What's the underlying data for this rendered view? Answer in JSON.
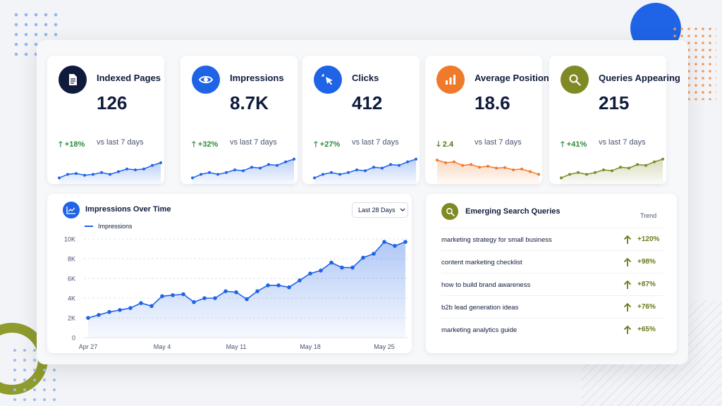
{
  "metrics": [
    {
      "title": "Indexed Pages",
      "value": "126",
      "change": "+18%",
      "direction": "up",
      "vs": "vs last 7 days",
      "icon": "document-icon",
      "color": "#0f1b3d",
      "spark_color": "#1f63e6",
      "spark": [
        3,
        5,
        5.5,
        4.5,
        5,
        6,
        5,
        6.5,
        8,
        7.5,
        8,
        10,
        11.5
      ]
    },
    {
      "title": "Impressions",
      "value": "8.7K",
      "change": "+32%",
      "direction": "up",
      "vs": "vs last 7 days",
      "icon": "eye-icon",
      "color": "#1f63e6",
      "spark_color": "#1f63e6",
      "spark": [
        3,
        5,
        6,
        5,
        6,
        7.5,
        7,
        9,
        8.5,
        10.5,
        10,
        12,
        13.5
      ]
    },
    {
      "title": "Clicks",
      "value": "412",
      "change": "+27%",
      "direction": "up",
      "vs": "vs last 7 days",
      "icon": "cursor-click-icon",
      "color": "#1f63e6",
      "spark_color": "#1f63e6",
      "spark": [
        3,
        5,
        6,
        5,
        6,
        7.5,
        7,
        9,
        8.5,
        10.5,
        10,
        12,
        13.5
      ]
    },
    {
      "title": "Average Position",
      "value": "18.6",
      "change": "2.4",
      "direction": "down",
      "vs": "vs last 7 days",
      "icon": "bar-chart-icon",
      "color": "#f07a2c",
      "spark_color": "#f07a2c",
      "spark": [
        13,
        11.5,
        12,
        10,
        10.5,
        9,
        9.5,
        8.5,
        8.8,
        7.5,
        8,
        6.5,
        5
      ]
    },
    {
      "title": "Queries Appearing",
      "value": "215",
      "change": "+41%",
      "direction": "up",
      "vs": "vs last 7 days",
      "icon": "search-icon",
      "color": "#7f8a25",
      "spark_color": "#7f8a25",
      "spark": [
        3,
        5,
        6,
        5,
        6,
        7.5,
        7,
        9,
        8.5,
        10.5,
        10,
        12,
        13.5
      ]
    }
  ],
  "impressions_card": {
    "title": "Impressions Over Time",
    "range_label": "Last 28 Days",
    "legend": "Impressions"
  },
  "chart_data": {
    "type": "area",
    "title": "Impressions Over Time",
    "xlabel": "",
    "ylabel": "",
    "x_ticks": [
      "Apr 27",
      "May 4",
      "May 11",
      "May 18",
      "May 25"
    ],
    "y_ticks": [
      "0",
      "2K",
      "4K",
      "6K",
      "8K",
      "10K"
    ],
    "ylim": [
      0,
      10000
    ],
    "grid": true,
    "legend_position": "top-left",
    "series": [
      {
        "name": "Impressions",
        "x": [
          "Apr 27",
          "Apr 28",
          "Apr 29",
          "Apr 30",
          "May 1",
          "May 2",
          "May 3",
          "May 4",
          "May 5",
          "May 6",
          "May 7",
          "May 8",
          "May 9",
          "May 10",
          "May 11",
          "May 12",
          "May 13",
          "May 14",
          "May 15",
          "May 16",
          "May 17",
          "May 18",
          "May 19",
          "May 20",
          "May 21",
          "May 22",
          "May 23",
          "May 24",
          "May 25",
          "May 26",
          "May 27"
        ],
        "values": [
          2000,
          2300,
          2600,
          2800,
          3000,
          3500,
          3200,
          4200,
          4300,
          4400,
          3600,
          4000,
          4000,
          4700,
          4600,
          3900,
          4700,
          5300,
          5300,
          5100,
          5800,
          6500,
          6800,
          7600,
          7100,
          7100,
          8100,
          8500,
          9700,
          9300,
          9700
        ]
      }
    ]
  },
  "queries_card": {
    "title": "Emerging Search Queries",
    "trend_header": "Trend",
    "rows": [
      {
        "query": "marketing strategy for small business",
        "trend": "+120%"
      },
      {
        "query": "content marketing checklist",
        "trend": "+98%"
      },
      {
        "query": "how to build brand awareness",
        "trend": "+87%"
      },
      {
        "query": "b2b lead generation ideas",
        "trend": "+76%"
      },
      {
        "query": "marketing analytics guide",
        "trend": "+65%"
      }
    ]
  }
}
